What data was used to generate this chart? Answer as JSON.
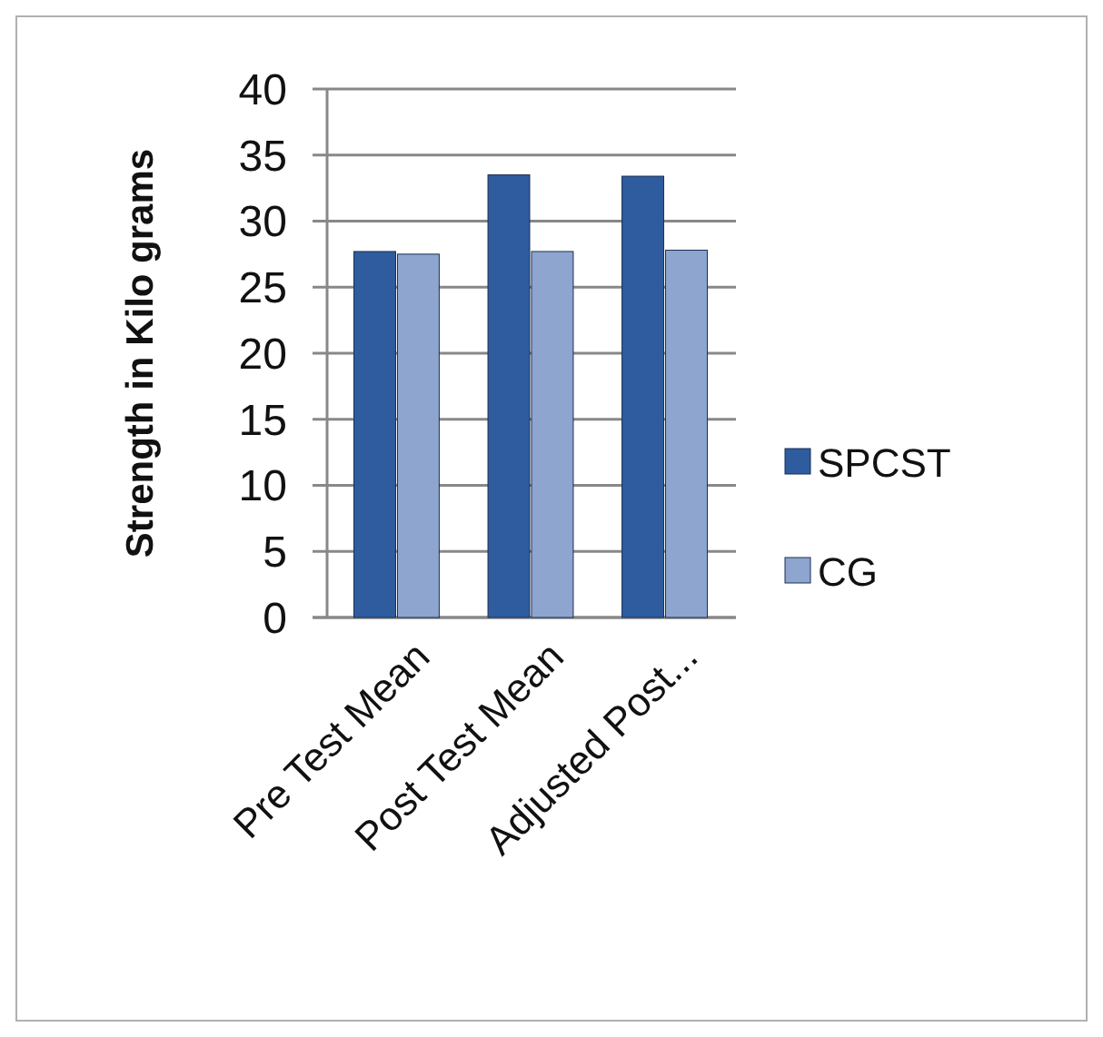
{
  "chart_data": {
    "type": "bar",
    "ylabel": "Strength in Kilo grams",
    "categories": [
      "Pre Test Mean",
      "Post Test Mean",
      "Adjusted Post..."
    ],
    "series": [
      {
        "name": "SPCST",
        "color": "#2e5c9e",
        "values": [
          27.7,
          33.5,
          33.4
        ]
      },
      {
        "name": "CG",
        "color": "#8ea5cf",
        "values": [
          27.5,
          27.7,
          27.8
        ]
      }
    ],
    "ylim": [
      0,
      40
    ],
    "yticks": [
      0,
      5,
      10,
      15,
      20,
      25,
      30,
      35,
      40
    ],
    "grid": "y",
    "legend": "right"
  }
}
